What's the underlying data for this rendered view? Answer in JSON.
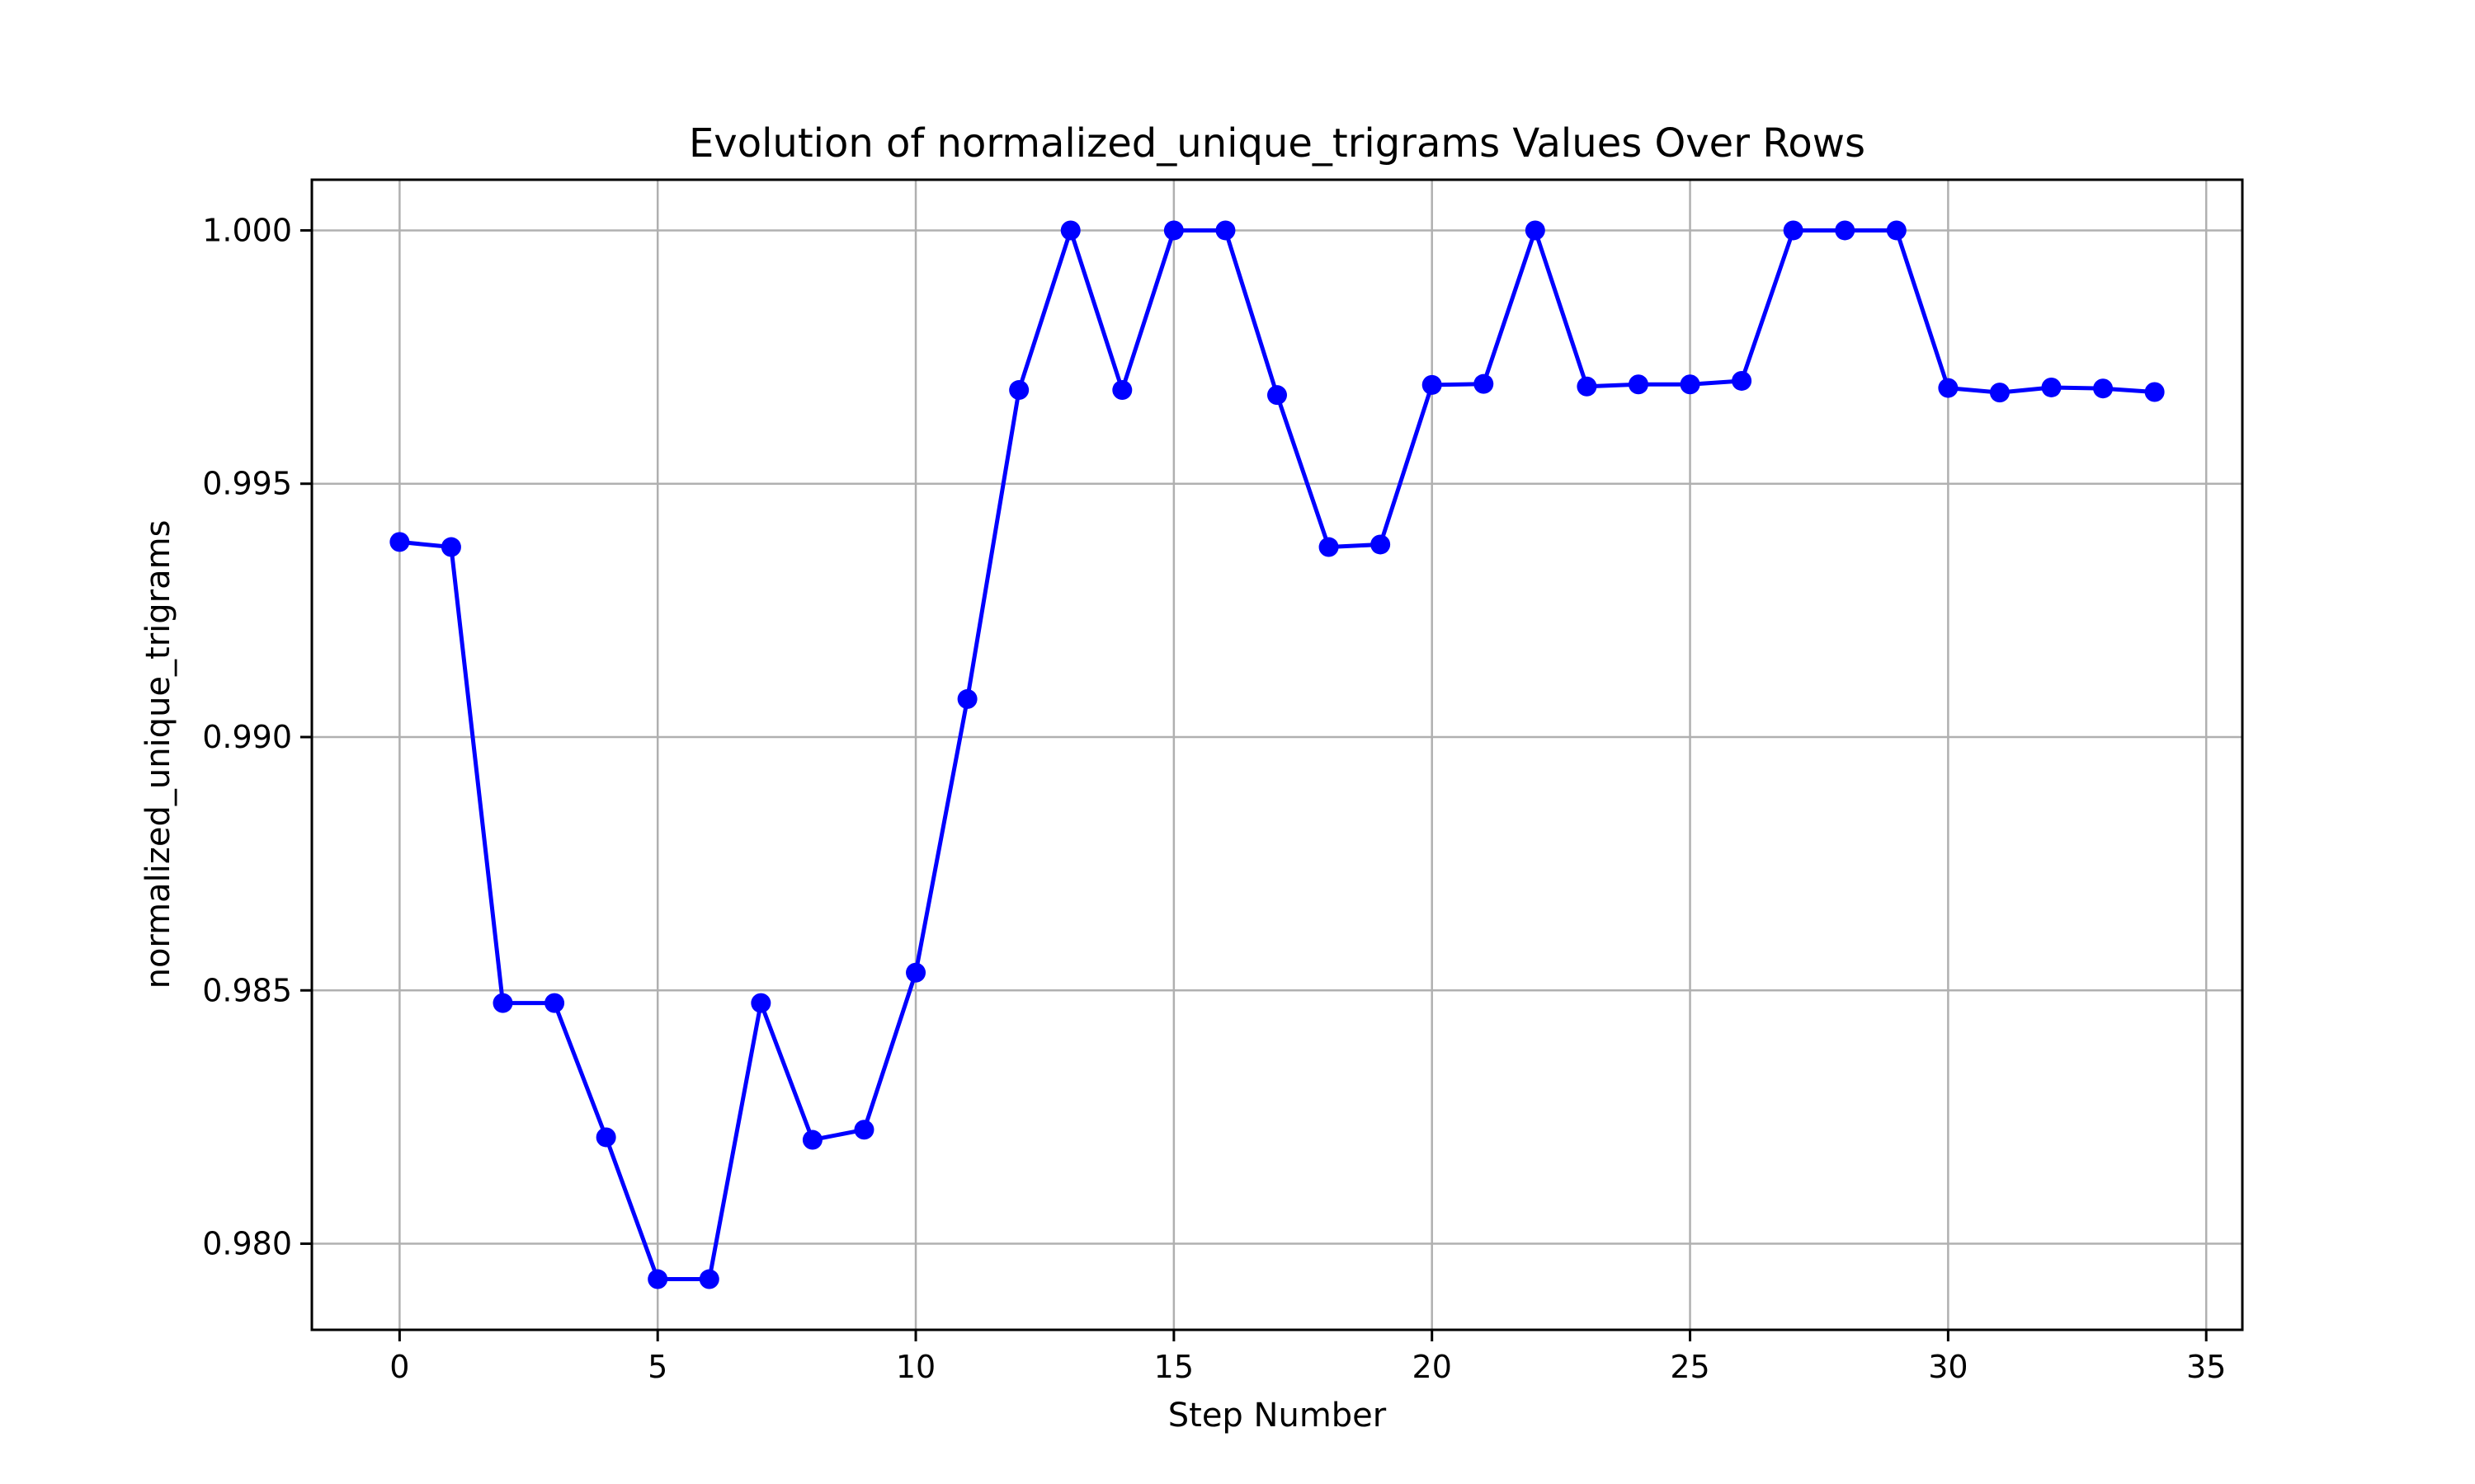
{
  "chart_data": {
    "type": "line",
    "title": "Evolution of normalized_unique_trigrams Values Over Rows",
    "xlabel": "Step Number",
    "ylabel": "normalized_unique_trigrams",
    "xlim": [
      -1.7,
      35.7
    ],
    "ylim": [
      0.9783,
      1.001
    ],
    "xticks": [
      0,
      5,
      10,
      15,
      20,
      25,
      30,
      35
    ],
    "yticks": [
      0.98,
      0.985,
      0.99,
      0.995,
      1.0
    ],
    "xtick_labels": [
      "0",
      "5",
      "10",
      "15",
      "20",
      "25",
      "30",
      "35"
    ],
    "ytick_labels": [
      "0.980",
      "0.985",
      "0.990",
      "0.995",
      "1.000"
    ],
    "grid": true,
    "color": "#0000ff",
    "marker": "circle",
    "series": [
      {
        "x": [
          0,
          1,
          2,
          3,
          4,
          5,
          6,
          7,
          8,
          9,
          10,
          11,
          12,
          13,
          14,
          15,
          16,
          17,
          18,
          19,
          20,
          21,
          22,
          23,
          24,
          25,
          26,
          27,
          28,
          29,
          30,
          31,
          32,
          33,
          34
        ],
        "values": [
          0.99385,
          0.99375,
          0.98475,
          0.98475,
          0.9821,
          0.9793,
          0.9793,
          0.98475,
          0.98205,
          0.98225,
          0.98535,
          0.99075,
          0.99685,
          1.0,
          0.99685,
          1.0,
          1.0,
          0.99675,
          0.99375,
          0.9938,
          0.99695,
          0.99697,
          1.0,
          0.99692,
          0.99696,
          0.99696,
          0.99703,
          1.0,
          1.0,
          1.0,
          0.99689,
          0.9968,
          0.9969,
          0.99688,
          0.99681
        ]
      }
    ]
  }
}
